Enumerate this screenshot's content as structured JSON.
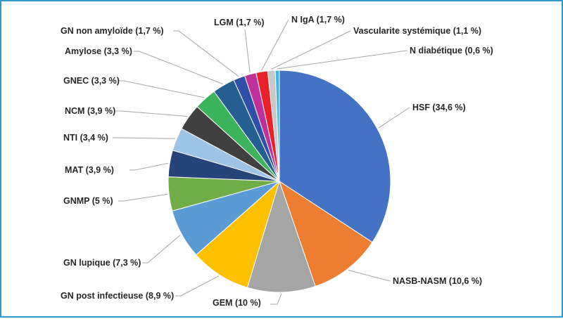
{
  "chart_data": {
    "type": "pie",
    "title": "",
    "legend": "none",
    "slices": [
      {
        "label": "HSF (34,6 %)",
        "value": 34.6,
        "color": "#4472c4"
      },
      {
        "label": "NASB-NASM (10,6 %)",
        "value": 10.6,
        "color": "#ed7d31"
      },
      {
        "label": "GEM (10 %)",
        "value": 10.0,
        "color": "#a5a5a5"
      },
      {
        "label": "GN post infectieuse (8,9 %)",
        "value": 8.9,
        "color": "#ffc000"
      },
      {
        "label": "GN lupique (7,3 %)",
        "value": 7.3,
        "color": "#5b9bd5"
      },
      {
        "label": "GNMP (5 %)",
        "value": 5.0,
        "color": "#70ad47"
      },
      {
        "label": "MAT (3,9 %)",
        "value": 3.9,
        "color": "#264478"
      },
      {
        "label": "NTI (3,4 %)",
        "value": 3.4,
        "color": "#9dc3e6"
      },
      {
        "label": "NCM (3,9 %)",
        "value": 3.9,
        "color": "#404040"
      },
      {
        "label": "GNEC (3,3 %)",
        "value": 3.3,
        "color": "#3cb45c"
      },
      {
        "label": "Amylose (3,3 %)",
        "value": 3.3,
        "color": "#255e91"
      },
      {
        "label": "GN non amyloïde (1,7 %)",
        "value": 1.7,
        "color": "#2f4fa8"
      },
      {
        "label": "LGM (1,7 %)",
        "value": 1.7,
        "color": "#c0309a"
      },
      {
        "label": "N IgA (1,7 %)",
        "value": 1.7,
        "color": "#e8202a"
      },
      {
        "label": "Vascularite systémique (1,1 %)",
        "value": 1.1,
        "color": "#c8c8c8"
      },
      {
        "label": "N diabétique (0,6 %)",
        "value": 0.6,
        "color": "#3fb8e0"
      }
    ]
  }
}
